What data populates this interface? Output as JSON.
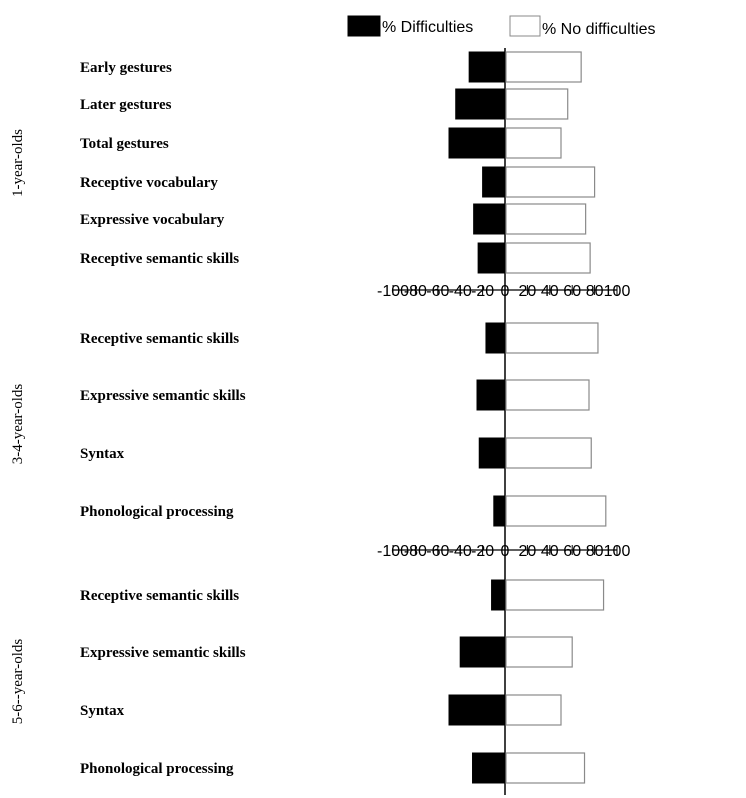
{
  "chart_data": {
    "type": "bar",
    "orientation": "horizontal-diverging",
    "xlim": [
      -100,
      100
    ],
    "tick_labels": [
      "-100",
      "-80",
      "-60",
      "-40",
      "-20",
      "0",
      "20",
      "40",
      "60",
      "80",
      "100"
    ],
    "tick_values": [
      -100,
      -80,
      -60,
      -40,
      -20,
      0,
      20,
      40,
      60,
      80,
      100
    ],
    "legend": {
      "placement": "top",
      "entries": [
        {
          "label": "% Difficulties",
          "color": "#000000"
        },
        {
          "label": "% No difficulties",
          "color": "#ffffff"
        }
      ]
    },
    "colors": {
      "difficulties": "#000000",
      "no_difficulties": "#ffffff",
      "no_difficulties_stroke": "#8a8a8a"
    },
    "groups": [
      {
        "label": "1-year-olds",
        "categories": [
          "Early gestures",
          "Later gestures",
          "Total gestures",
          "Receptive vocabulary",
          "Expressive vocabulary",
          "Receptive semantic skills"
        ],
        "series": [
          {
            "name": "% Difficulties",
            "values": [
              -32,
              -44,
              -50,
              -20,
              -28,
              -24
            ]
          },
          {
            "name": "% No difficulties",
            "values": [
              68,
              56,
              50,
              80,
              72,
              76
            ]
          }
        ]
      },
      {
        "label": "3-4-year-olds",
        "categories": [
          "Receptive semantic skills",
          "Expressive semantic skills",
          "Syntax",
          "Phonological processing"
        ],
        "series": [
          {
            "name": "% Difficulties",
            "values": [
              -17,
              -25,
              -23,
              -10
            ]
          },
          {
            "name": "% No difficulties",
            "values": [
              83,
              75,
              77,
              90
            ]
          }
        ]
      },
      {
        "label": "5-6--year-olds",
        "categories": [
          "Receptive semantic skills",
          "Expressive semantic skills",
          "Syntax",
          "Phonological processing"
        ],
        "series": [
          {
            "name": "% Difficulties",
            "values": [
              -12,
              -40,
              -50,
              -29
            ]
          },
          {
            "name": "% No difficulties",
            "values": [
              88,
              60,
              50,
              71
            ]
          }
        ]
      }
    ]
  }
}
